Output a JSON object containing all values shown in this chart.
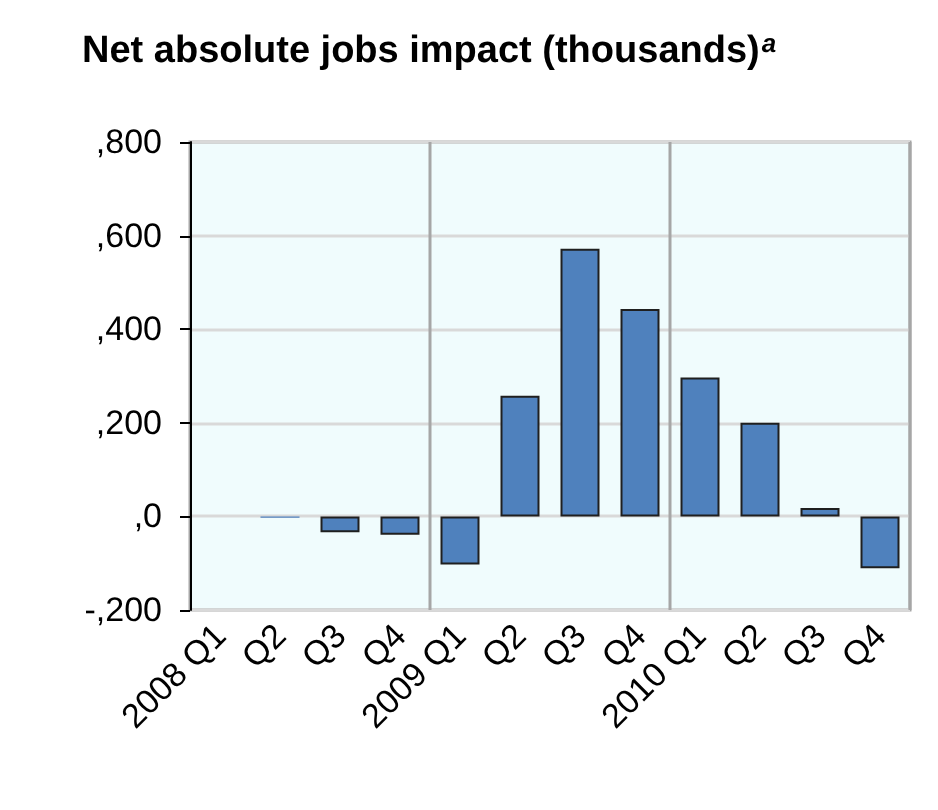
{
  "chart_data": {
    "type": "bar",
    "title": "Net absolute jobs impact (thousands)$^{a}$",
    "categories": [
      "2008 Q1",
      "Q2",
      "Q3",
      "Q4",
      "2009 Q1",
      "Q2",
      "Q3",
      "Q4",
      "2010 Q1",
      "Q2",
      "Q3",
      "Q4"
    ],
    "values": [
      null,
      -3,
      -34,
      -39,
      -103,
      258,
      572,
      443,
      297,
      200,
      18,
      -111
    ],
    "color": "#4f81bd",
    "ylim": [
      -200,
      800
    ],
    "yticks": [
      {
        "value": -200,
        "label": "-,200"
      },
      {
        "value": 0,
        "label": ",0"
      },
      {
        "value": 200,
        "label": ",200"
      },
      {
        "value": 400,
        "label": ",400"
      },
      {
        "value": 600,
        "label": ",600"
      },
      {
        "value": 800,
        "label": ",800"
      }
    ],
    "grid": true
  }
}
